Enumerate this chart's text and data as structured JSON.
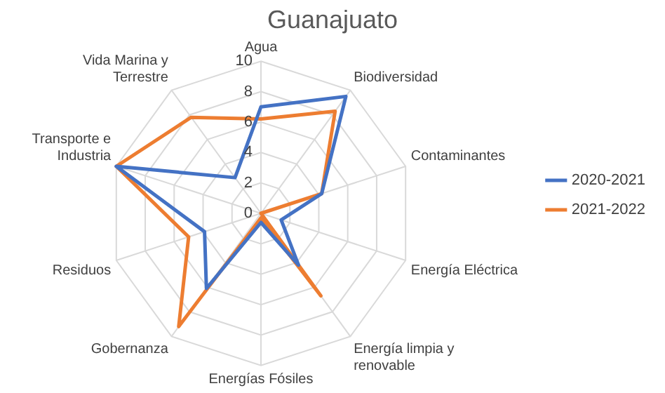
{
  "chart_data": {
    "type": "radar",
    "title": "Guanajuato",
    "categories": [
      "Agua",
      "Biodiversidad",
      "Contaminantes",
      "Energía Eléctrica",
      "Energía limpia y renovable",
      "Energías Fósiles",
      "Gobernanza",
      "Residuos",
      "Transporte e Industria",
      "Vida Marina y Terrestre"
    ],
    "series": [
      {
        "name": "2020-2021",
        "color": "#4472c4",
        "values": [
          7.0,
          9.5,
          4.2,
          1.4,
          4.2,
          0.6,
          6.1,
          3.9,
          10,
          2.9
        ]
      },
      {
        "name": "2021-2022",
        "color": "#ed7d31",
        "values": [
          6.2,
          8.3,
          4.2,
          0,
          6.7,
          0.3,
          9.2,
          5.0,
          10,
          7.8
        ]
      }
    ],
    "ylim": [
      0,
      10
    ],
    "yticks": [
      0,
      2,
      4,
      6,
      8,
      10
    ],
    "grid": true,
    "legend": "right",
    "marker": "none",
    "line_style": "solid"
  }
}
